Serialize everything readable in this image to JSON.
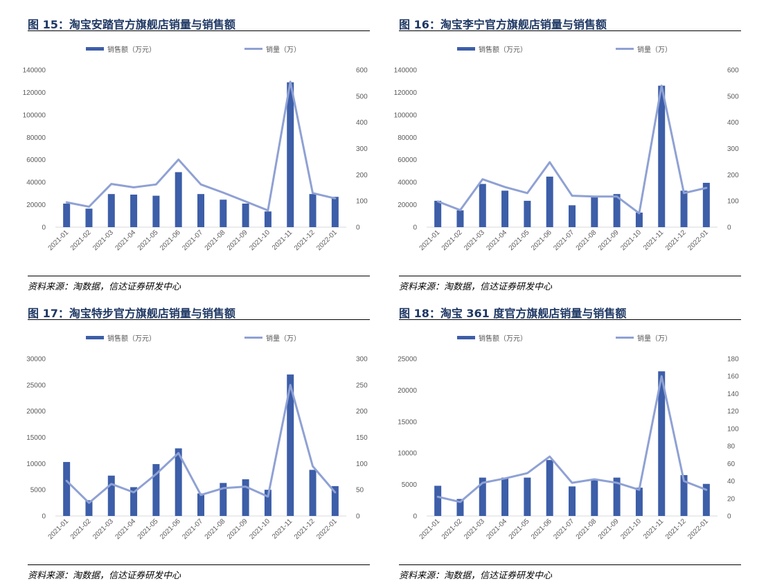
{
  "panels": [
    {
      "figure_title": "图 15：淘宝安踏官方旗舰店销量与销售额",
      "source": "资料来源：淘数据，信达证券研发中心",
      "chart_data": {
        "type": "bar+line",
        "categories": [
          "2021-01",
          "2021-02",
          "2021-03",
          "2021-04",
          "2021-05",
          "2021-06",
          "2021-07",
          "2021-08",
          "2021-09",
          "2021-10",
          "2021-11",
          "2021-12",
          "2022-01"
        ],
        "series": [
          {
            "name": "销售额（万元）",
            "type": "bar",
            "axis": "left",
            "values": [
              21000,
              16500,
              29500,
              29000,
              28000,
              49000,
              29500,
              24500,
              21000,
              14000,
              129000,
              29500,
              27000
            ]
          },
          {
            "name": "销量（万）",
            "type": "line",
            "axis": "right",
            "values": [
              95,
              78,
              165,
              152,
              163,
              258,
              163,
              132,
              98,
              64,
              555,
              130,
              110
            ]
          }
        ],
        "y_left": {
          "min": 0,
          "max": 140000,
          "ticks": [
            "0",
            "20000",
            "40000",
            "60000",
            "80000",
            "100000",
            "120000",
            "140000"
          ]
        },
        "y_right": {
          "min": 0,
          "max": 600,
          "ticks": [
            "0",
            "100",
            "200",
            "300",
            "400",
            "500",
            "600"
          ]
        },
        "legend": "top",
        "grid": false
      }
    },
    {
      "figure_title": "图 16：淘宝李宁官方旗舰店销量与销售额",
      "source": "资料来源：淘数据，信达证券研发中心",
      "chart_data": {
        "type": "bar+line",
        "categories": [
          "2021-01",
          "2021-02",
          "2021-03",
          "2021-04",
          "2021-05",
          "2021-06",
          "2021-07",
          "2021-08",
          "2021-09",
          "2021-10",
          "2021-11",
          "2021-12",
          "2022-01"
        ],
        "series": [
          {
            "name": "销售额（万元）",
            "type": "bar",
            "axis": "left",
            "values": [
              23500,
              15000,
              38500,
              32500,
              23500,
              45000,
              19500,
              26500,
              29500,
              13000,
              126000,
              32500,
              39500
            ]
          },
          {
            "name": "销量（万）",
            "type": "line",
            "axis": "right",
            "values": [
              98,
              65,
              183,
              153,
              130,
              248,
              120,
              117,
              117,
              53,
              540,
              130,
              150
            ]
          }
        ],
        "y_left": {
          "min": 0,
          "max": 140000,
          "ticks": [
            "0",
            "20000",
            "40000",
            "60000",
            "80000",
            "100000",
            "120000",
            "140000"
          ]
        },
        "y_right": {
          "min": 0,
          "max": 600,
          "ticks": [
            "0",
            "100",
            "200",
            "300",
            "400",
            "500",
            "600"
          ]
        },
        "legend": "top",
        "grid": false
      }
    },
    {
      "figure_title": "图 17：淘宝特步官方旗舰店销量与销售额",
      "source": "资料来源：淘数据，信达证券研发中心",
      "chart_data": {
        "type": "bar+line",
        "categories": [
          "2021-01",
          "2021-02",
          "2021-03",
          "2021-04",
          "2021-05",
          "2021-06",
          "2021-07",
          "2021-08",
          "2021-09",
          "2021-10",
          "2021-11",
          "2021-12",
          "2022-01"
        ],
        "series": [
          {
            "name": "销售额（万元）",
            "type": "bar",
            "axis": "left",
            "values": [
              10300,
              3000,
              7700,
              5500,
              9900,
              12900,
              4300,
              6300,
              7000,
              5000,
              27000,
              8800,
              5700
            ]
          },
          {
            "name": "销量（万）",
            "type": "line",
            "axis": "right",
            "values": [
              67,
              25,
              61,
              45,
              80,
              120,
              40,
              53,
              56,
              37,
              250,
              95,
              45
            ]
          }
        ],
        "y_left": {
          "min": 0,
          "max": 30000,
          "ticks": [
            "0",
            "5000",
            "10000",
            "15000",
            "20000",
            "25000",
            "30000"
          ]
        },
        "y_right": {
          "min": 0,
          "max": 300,
          "ticks": [
            "0",
            "50",
            "100",
            "150",
            "200",
            "250",
            "300"
          ]
        },
        "legend": "top",
        "grid": false
      }
    },
    {
      "figure_title": "图 18：淘宝 361 度官方旗舰店销量与销售额",
      "source": "资料来源：淘数据，信达证券研发中心",
      "chart_data": {
        "type": "bar+line",
        "categories": [
          "2021-01",
          "2021-02",
          "2021-03",
          "2021-04",
          "2021-05",
          "2021-06",
          "2021-07",
          "2021-08",
          "2021-09",
          "2021-10",
          "2021-11",
          "2021-12",
          "2022-01"
        ],
        "series": [
          {
            "name": "销售额（万元）",
            "type": "bar",
            "axis": "left",
            "values": [
              4800,
              2700,
              6100,
              6100,
              6100,
              8900,
              4700,
              5700,
              6100,
              4500,
              23000,
              6500,
              5100
            ]
          },
          {
            "name": "销量（万）",
            "type": "line",
            "axis": "right",
            "values": [
              22,
              16,
              38,
              43,
              49,
              68,
              38,
              42,
              38,
              30,
              160,
              40,
              30
            ]
          }
        ],
        "y_left": {
          "min": 0,
          "max": 25000,
          "ticks": [
            "0",
            "5000",
            "10000",
            "15000",
            "20000",
            "25000"
          ]
        },
        "y_right": {
          "min": 0,
          "max": 180,
          "ticks": [
            "0",
            "20",
            "40",
            "60",
            "80",
            "100",
            "120",
            "140",
            "160",
            "180"
          ]
        },
        "legend": "top",
        "grid": false
      }
    }
  ],
  "colors": {
    "bar": "#3d5ea8",
    "line": "#8fa1d4",
    "axis": "#d9d9d9",
    "title": "#1f3864"
  }
}
